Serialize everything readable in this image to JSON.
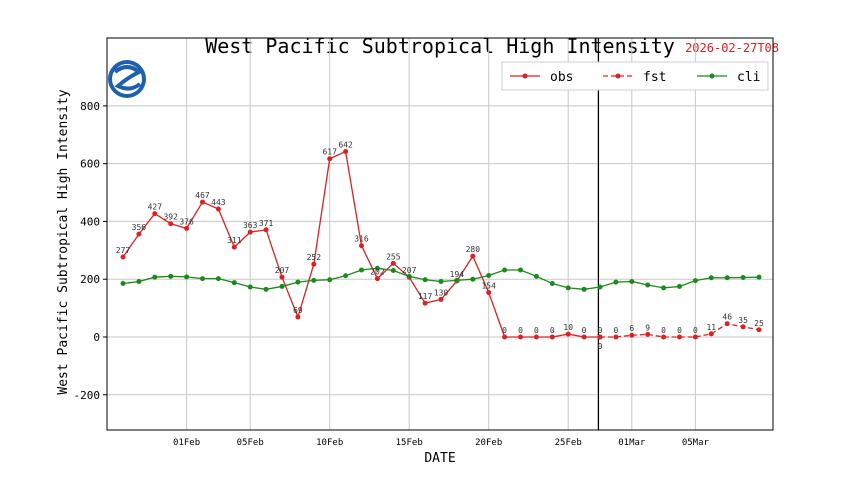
{
  "chart_data": {
    "type": "line",
    "title": "West Pacific Subtropical High Intensity",
    "issue_time": "2026-02-27T08",
    "xlabel": "DATE",
    "ylabel": "West Pacific Subtropical High Intensity",
    "ylim": [
      -322,
      1035
    ],
    "yticks": [
      -200,
      0,
      200,
      400,
      600,
      800
    ],
    "xticks": [
      {
        "label": "01Feb",
        "day": 4
      },
      {
        "label": "05Feb",
        "day": 8
      },
      {
        "label": "10Feb",
        "day": 13
      },
      {
        "label": "15Feb",
        "day": 18
      },
      {
        "label": "20Feb",
        "day": 23
      },
      {
        "label": "25Feb",
        "day": 28
      },
      {
        "label": "01Mar",
        "day": 32
      },
      {
        "label": "05Mar",
        "day": 36
      }
    ],
    "grid": true,
    "legend_position": "top-right",
    "start_date": "2026-01-28",
    "forecast_start_day": 30,
    "series": [
      {
        "name": "obs",
        "color": "#e02020",
        "style": "solid",
        "start_day": 0,
        "values": [
          277,
          356,
          427,
          392,
          376,
          467,
          443,
          311,
          363,
          371,
          207,
          69,
          252,
          617,
          642,
          316,
          202,
          255,
          207,
          117,
          130,
          194,
          280,
          154,
          0,
          0,
          0,
          0,
          10,
          0,
          0
        ]
      },
      {
        "name": "fst",
        "color": "#e02020",
        "style": "dashed",
        "start_day": 30,
        "values": [
          0,
          0,
          6,
          9,
          0,
          0,
          0,
          11,
          46,
          35,
          25
        ]
      },
      {
        "name": "cli",
        "color": "#1a8a1a",
        "style": "solid",
        "start_day": 0,
        "values": [
          185,
          192,
          207,
          210,
          208,
          202,
          202,
          188,
          173,
          165,
          175,
          190,
          196,
          198,
          212,
          232,
          238,
          230,
          210,
          198,
          192,
          196,
          200,
          213,
          232,
          232,
          210,
          185,
          170,
          165,
          173,
          190,
          192,
          180,
          170,
          175,
          195,
          205,
          205,
          206,
          207
        ]
      }
    ]
  }
}
